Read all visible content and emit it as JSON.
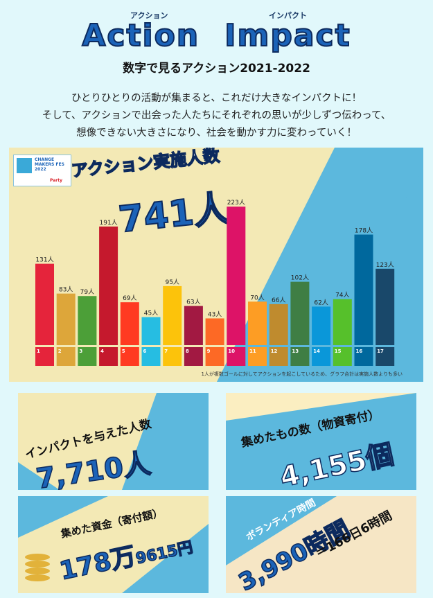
{
  "header": {
    "title_action": "Action",
    "title_impact": "Impact",
    "ruby_action": "アクション",
    "ruby_impact": "インパクト",
    "subtitle": "数字で見るアクション2021-2022"
  },
  "intro": {
    "line1": "ひとりひとりの活動が集まると、これだけ大きなインパクトに！",
    "line2": "そして、アクションで出会った人たちにそれぞれの思いが少しずつ伝わって、",
    "line3": "想像できない大きさになり、社会を動かす力に変わっていく！"
  },
  "logo": {
    "text": "CHANGE MAKERS FES 2022",
    "party": "Party"
  },
  "chart_data": {
    "type": "bar",
    "title": "アクション実施人数",
    "total": "741人",
    "categories": [
      "1",
      "2",
      "3",
      "4",
      "5",
      "6",
      "7",
      "8",
      "9",
      "10",
      "11",
      "12",
      "13",
      "14",
      "15",
      "16",
      "17"
    ],
    "values": [
      131,
      83,
      79,
      191,
      69,
      45,
      95,
      63,
      43,
      223,
      70,
      66,
      102,
      62,
      74,
      178,
      123
    ],
    "value_labels": [
      "131人",
      "83人",
      "79人",
      "191人",
      "69人",
      "45人",
      "95人",
      "63人",
      "43人",
      "223人",
      "70人",
      "66人",
      "102人",
      "62人",
      "74人",
      "178人",
      "123人"
    ],
    "colors": [
      "#e5243b",
      "#dda63a",
      "#4c9f38",
      "#c5192d",
      "#ff3a21",
      "#26bde2",
      "#fcc30b",
      "#a21942",
      "#fd6925",
      "#dd1367",
      "#fd9d24",
      "#bf8b2e",
      "#3f7e44",
      "#0a97d9",
      "#56c02b",
      "#00689d",
      "#19486a"
    ],
    "ylim": [
      0,
      240
    ],
    "footnote": "1人が複数ゴールに対してアクションを起こしているため、グラフ合計は実施人数よりも多い"
  },
  "cards": {
    "c1": {
      "label": "インパクトを与えた人数",
      "value": "7,710人"
    },
    "c2": {
      "label": "集めたもの数（物資寄付）",
      "value": "4,155個"
    },
    "c3": {
      "label": "集めた資金（寄付額）",
      "value_main": "178万",
      "value_sub": "9615円"
    },
    "c4": {
      "label": "ボランティア時間",
      "value": "3,990時間",
      "note": "＝166日6時間"
    }
  }
}
